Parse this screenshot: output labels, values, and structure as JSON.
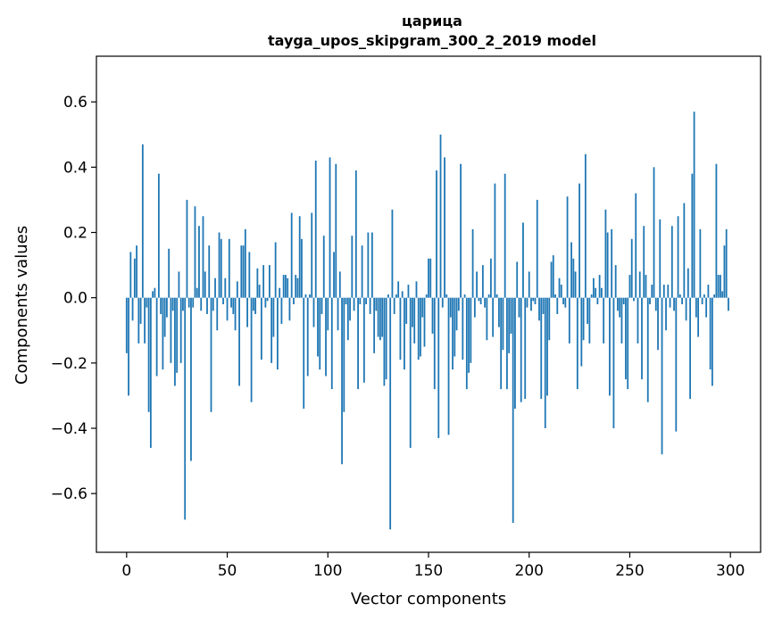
{
  "chart_data": {
    "type": "bar",
    "title": "царица",
    "subtitle": "tayga_upos_skipgram_300_2_2019 model",
    "xlabel": "Vector components",
    "ylabel": "Components values",
    "xlim": [
      -15,
      315
    ],
    "ylim": [
      -0.78,
      0.74
    ],
    "xticks": [
      0,
      50,
      100,
      150,
      200,
      250,
      300
    ],
    "xtick_labels": [
      "0",
      "50",
      "100",
      "150",
      "200",
      "250",
      "300"
    ],
    "yticks": [
      -0.6,
      -0.4,
      -0.2,
      0.0,
      0.2,
      0.4,
      0.6
    ],
    "ytick_labels": [
      "−0.6",
      "−0.4",
      "−0.2",
      "0.0",
      "0.2",
      "0.4",
      "0.6"
    ],
    "grid": false,
    "bar_color": "#1f77b4",
    "x": [
      0,
      1,
      2,
      3,
      4,
      5,
      6,
      7,
      8,
      9,
      10,
      11,
      12,
      13,
      14,
      15,
      16,
      17,
      18,
      19,
      20,
      21,
      22,
      23,
      24,
      25,
      26,
      27,
      28,
      29,
      30,
      31,
      32,
      33,
      34,
      35,
      36,
      37,
      38,
      39,
      40,
      41,
      42,
      43,
      44,
      45,
      46,
      47,
      48,
      49,
      50,
      51,
      52,
      53,
      54,
      55,
      56,
      57,
      58,
      59,
      60,
      61,
      62,
      63,
      64,
      65,
      66,
      67,
      68,
      69,
      70,
      71,
      72,
      73,
      74,
      75,
      76,
      77,
      78,
      79,
      80,
      81,
      82,
      83,
      84,
      85,
      86,
      87,
      88,
      89,
      90,
      91,
      92,
      93,
      94,
      95,
      96,
      97,
      98,
      99,
      100,
      101,
      102,
      103,
      104,
      105,
      106,
      107,
      108,
      109,
      110,
      111,
      112,
      113,
      114,
      115,
      116,
      117,
      118,
      119,
      120,
      121,
      122,
      123,
      124,
      125,
      126,
      127,
      128,
      129,
      130,
      131,
      132,
      133,
      134,
      135,
      136,
      137,
      138,
      139,
      140,
      141,
      142,
      143,
      144,
      145,
      146,
      147,
      148,
      149,
      150,
      151,
      152,
      153,
      154,
      155,
      156,
      157,
      158,
      159,
      160,
      161,
      162,
      163,
      164,
      165,
      166,
      167,
      168,
      169,
      170,
      171,
      172,
      173,
      174,
      175,
      176,
      177,
      178,
      179,
      180,
      181,
      182,
      183,
      184,
      185,
      186,
      187,
      188,
      189,
      190,
      191,
      192,
      193,
      194,
      195,
      196,
      197,
      198,
      199,
      200,
      201,
      202,
      203,
      204,
      205,
      206,
      207,
      208,
      209,
      210,
      211,
      212,
      213,
      214,
      215,
      216,
      217,
      218,
      219,
      220,
      221,
      222,
      223,
      224,
      225,
      226,
      227,
      228,
      229,
      230,
      231,
      232,
      233,
      234,
      235,
      236,
      237,
      238,
      239,
      240,
      241,
      242,
      243,
      244,
      245,
      246,
      247,
      248,
      249,
      250,
      251,
      252,
      253,
      254,
      255,
      256,
      257,
      258,
      259,
      260,
      261,
      262,
      263,
      264,
      265,
      266,
      267,
      268,
      269,
      270,
      271,
      272,
      273,
      274,
      275,
      276,
      277,
      278,
      279,
      280,
      281,
      282,
      283,
      284,
      285,
      286,
      287,
      288,
      289,
      290,
      291,
      292,
      293,
      294,
      295,
      296,
      297,
      298,
      299
    ],
    "values": [
      -0.17,
      -0.3,
      0.14,
      -0.07,
      0.12,
      0.16,
      -0.14,
      -0.08,
      0.47,
      -0.14,
      -0.03,
      -0.35,
      -0.46,
      0.02,
      0.03,
      -0.24,
      0.38,
      -0.05,
      -0.22,
      -0.12,
      -0.06,
      0.15,
      -0.2,
      -0.04,
      -0.27,
      -0.23,
      0.08,
      -0.2,
      -0.04,
      -0.68,
      0.3,
      -0.03,
      -0.5,
      -0.03,
      0.28,
      0.03,
      0.22,
      -0.04,
      0.25,
      0.08,
      -0.05,
      0.16,
      -0.35,
      -0.04,
      0.06,
      -0.1,
      0.2,
      0.18,
      -0.02,
      0.06,
      -0.07,
      0.18,
      -0.03,
      -0.05,
      -0.1,
      0.05,
      -0.27,
      0.16,
      0.16,
      0.21,
      -0.09,
      0.14,
      -0.32,
      -0.04,
      -0.05,
      0.09,
      0.04,
      -0.19,
      0.1,
      -0.03,
      -0.01,
      0.1,
      -0.2,
      -0.12,
      0.17,
      -0.22,
      0.03,
      -0.08,
      0.07,
      0.07,
      0.06,
      -0.07,
      0.26,
      -0.02,
      0.07,
      0.06,
      0.25,
      0.18,
      -0.34,
      0.01,
      -0.24,
      0.01,
      0.26,
      -0.09,
      0.42,
      -0.18,
      -0.22,
      -0.05,
      0.19,
      -0.24,
      -0.1,
      0.43,
      -0.28,
      0.14,
      0.41,
      -0.1,
      0.08,
      -0.51,
      -0.35,
      -0.02,
      -0.13,
      -0.07,
      0.19,
      -0.04,
      0.39,
      -0.28,
      -0.02,
      0.16,
      -0.26,
      -0.02,
      0.2,
      -0.05,
      0.2,
      -0.17,
      -0.04,
      -0.12,
      -0.13,
      -0.12,
      -0.27,
      -0.25,
      0.01,
      -0.71,
      0.27,
      -0.05,
      0.01,
      0.05,
      -0.19,
      0.02,
      -0.22,
      -0.08,
      0.04,
      -0.46,
      -0.09,
      -0.14,
      0.05,
      -0.19,
      -0.18,
      -0.06,
      -0.15,
      0.01,
      0.12,
      0.12,
      -0.11,
      -0.28,
      0.39,
      -0.43,
      0.5,
      -0.03,
      0.43,
      0.01,
      -0.42,
      -0.06,
      -0.22,
      -0.18,
      -0.1,
      -0.04,
      0.41,
      -0.19,
      0.01,
      -0.28,
      -0.23,
      -0.2,
      0.21,
      -0.06,
      0.08,
      -0.01,
      -0.02,
      0.1,
      -0.03,
      -0.13,
      0.01,
      0.12,
      -0.12,
      0.35,
      0.01,
      -0.09,
      -0.28,
      -0.16,
      0.38,
      -0.28,
      -0.17,
      -0.11,
      -0.69,
      -0.34,
      0.11,
      -0.06,
      -0.32,
      0.23,
      -0.31,
      -0.03,
      0.08,
      -0.04,
      -0.01,
      -0.02,
      0.3,
      -0.07,
      -0.31,
      -0.05,
      -0.4,
      -0.3,
      -0.13,
      0.11,
      0.13,
      0.01,
      -0.05,
      0.06,
      0.04,
      -0.02,
      -0.03,
      0.31,
      -0.14,
      0.17,
      0.12,
      0.08,
      -0.28,
      0.35,
      -0.21,
      -0.13,
      0.44,
      -0.08,
      -0.14,
      0.01,
      0.06,
      0.03,
      -0.02,
      0.07,
      0.03,
      -0.14,
      0.27,
      0.2,
      -0.3,
      0.21,
      -0.4,
      0.1,
      -0.04,
      -0.06,
      -0.14,
      -0.02,
      -0.25,
      -0.28,
      0.07,
      0.18,
      -0.01,
      0.32,
      -0.14,
      0.08,
      -0.25,
      0.22,
      0.07,
      -0.32,
      -0.02,
      0.04,
      0.4,
      -0.04,
      -0.16,
      0.24,
      -0.48,
      0.04,
      -0.1,
      0.04,
      -0.03,
      0.22,
      -0.04,
      -0.41,
      0.25,
      0.01,
      -0.02,
      0.29,
      -0.07,
      0.09,
      -0.31,
      0.38,
      0.57,
      -0.06,
      -0.12,
      0.21,
      -0.02,
      0.01,
      -0.06,
      0.04,
      -0.22,
      -0.27,
      0.01,
      0.41,
      0.07,
      0.07,
      0.02,
      0.16,
      0.21,
      -0.04
    ]
  }
}
